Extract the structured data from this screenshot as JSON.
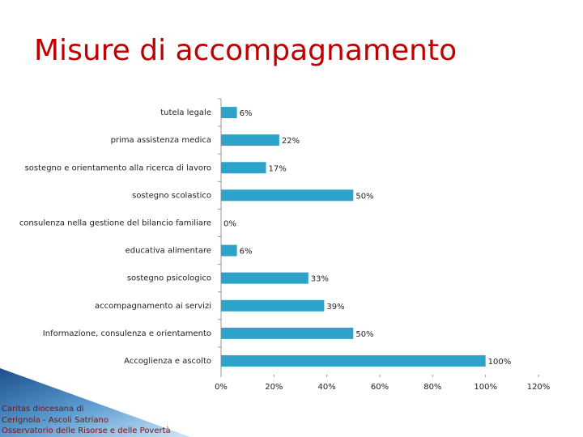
{
  "chart_data": {
    "type": "bar",
    "orientation": "horizontal",
    "title": "Misure di accompagnamento",
    "categories": [
      "tutela legale",
      "prima assistenza medica",
      "sostegno e orientamento alla ricerca di lavoro",
      "sostegno scolastico",
      "consulenza nella gestione del bilancio familiare",
      "educativa alimentare",
      "sostegno psicologico",
      "accompagnamento ai servizi",
      "Informazione, consulenza e orientamento",
      "Accoglienza e ascolto"
    ],
    "values": [
      6,
      22,
      17,
      50,
      0,
      6,
      33,
      39,
      50,
      100
    ],
    "value_labels": [
      "6%",
      "22%",
      "17%",
      "50%",
      "0%",
      "6%",
      "33%",
      "39%",
      "50%",
      "100%"
    ],
    "color": "#2ea3c9",
    "xlim": [
      0,
      120
    ],
    "xticks": [
      {
        "value": 0,
        "label": "0%"
      },
      {
        "value": 20,
        "label": "20%"
      },
      {
        "value": 40,
        "label": "40%"
      },
      {
        "value": 60,
        "label": "60%"
      },
      {
        "value": 80,
        "label": "80%"
      },
      {
        "value": 100,
        "label": "100%"
      },
      {
        "value": 120,
        "label": "120%"
      }
    ]
  },
  "footer": [
    "Caritas diocesana di",
    "Cerignola - Ascoli Satriano",
    "Osservatorio delle Risorse e delle Povertà"
  ]
}
